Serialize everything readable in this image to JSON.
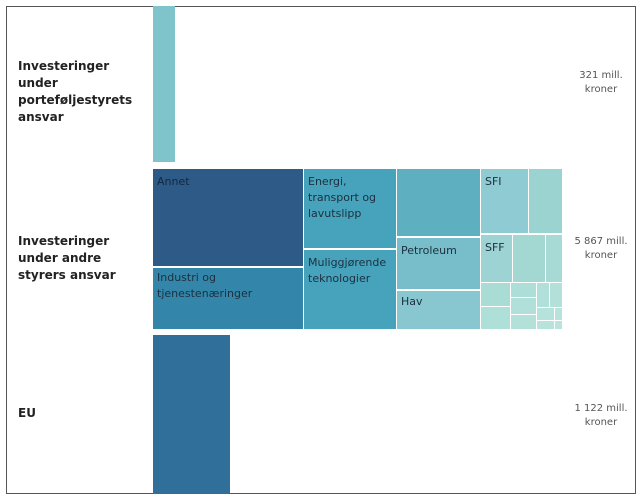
{
  "chart_data": {
    "type": "treemap",
    "rows": [
      {
        "label": "Investeringer under porteføljestyrets ansvar",
        "value": 321,
        "total_label": "321 mill. kroner",
        "color": "#7fc4cb"
      },
      {
        "label": "Investeringer under andre styrers ansvar",
        "value": 5867,
        "total_label": "5 867 mill. kroner",
        "tiles": [
          {
            "label": "Annet",
            "color": "#2d5a87"
          },
          {
            "label": "Industri og tjenestenæringer",
            "color": "#3386aa"
          },
          {
            "label": "Energi, transport og lavutslipp",
            "color": "#46a3bb"
          },
          {
            "label": "Muliggjørende teknologier",
            "color": "#46a3bb"
          },
          {
            "label": "",
            "color": "#5eafc0"
          },
          {
            "label": "Petroleum",
            "color": "#78bdca"
          },
          {
            "label": "Hav",
            "color": "#88c7d0"
          },
          {
            "label": "SFI",
            "color": "#8fcbd2"
          },
          {
            "label": "SFF",
            "color": "#9dd4d3"
          }
        ]
      },
      {
        "label": "EU",
        "value": 1122,
        "total_label": "1 122 mill. kroner",
        "color": "#2f6f99"
      }
    ]
  }
}
